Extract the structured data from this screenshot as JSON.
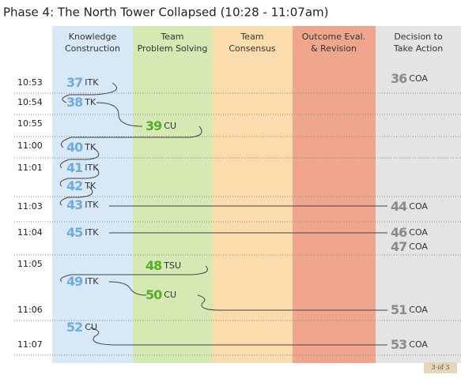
{
  "title": "Phase 4: The North Tower Collapsed  (10:28 - 11:07am)",
  "columns": [
    [
      "Knowledge",
      "Construction"
    ],
    [
      "Team",
      "Problem Solving"
    ],
    [
      "Team",
      "Consensus"
    ],
    [
      "Outcome Eval.",
      "& Revision"
    ],
    [
      "Decision to",
      "Take Action"
    ]
  ],
  "times": [
    "10:53",
    "10:54",
    "10:55",
    "11:00",
    "11:01",
    "11:03",
    "11:04",
    "11:05",
    "11:06",
    "11:07"
  ],
  "events": [
    {
      "number": 37,
      "code": "ITK"
    },
    {
      "number": 36,
      "code": "COA"
    },
    {
      "number": 38,
      "code": "TK"
    },
    {
      "number": 39,
      "code": "CU"
    },
    {
      "number": 40,
      "code": "TK"
    },
    {
      "number": 41,
      "code": "ITK"
    },
    {
      "number": 42,
      "code": "TK"
    },
    {
      "number": 43,
      "code": "ITK"
    },
    {
      "number": 44,
      "code": "COA"
    },
    {
      "number": 45,
      "code": "ITK"
    },
    {
      "number": 46,
      "code": "COA"
    },
    {
      "number": 47,
      "code": "COA"
    },
    {
      "number": 48,
      "code": "TSU"
    },
    {
      "number": 49,
      "code": "ITK"
    },
    {
      "number": 50,
      "code": "CU"
    },
    {
      "number": 51,
      "code": "COA"
    },
    {
      "number": 52,
      "code": "CU"
    },
    {
      "number": 53,
      "code": "COA"
    }
  ],
  "page_indicator": "3 of 3"
}
